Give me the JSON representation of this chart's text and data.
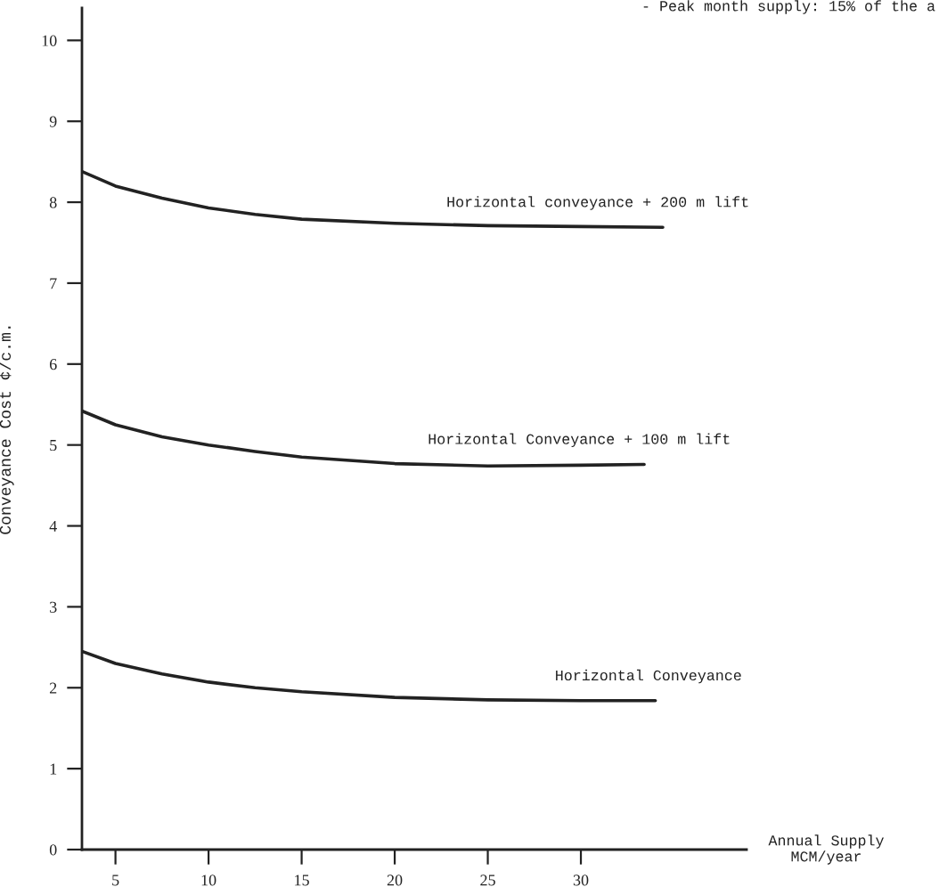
{
  "chart_data": {
    "type": "line",
    "xlabel": "Annual Supply\nMCM/year",
    "ylabel": "Conveyance Cost ¢/c.m.",
    "annotations": [
      "- Peak month supply: 15% of the a"
    ],
    "xlim": [
      3.2,
      38.9
    ],
    "ylim": [
      0,
      10.4
    ],
    "xticks": [
      5,
      10,
      15,
      20,
      25,
      30
    ],
    "yticks": [
      0,
      1,
      2,
      3,
      4,
      5,
      6,
      7,
      8,
      9,
      10
    ],
    "grid": false,
    "legend": false,
    "marker": "none",
    "line_style": "solid",
    "series": [
      {
        "name": "Horizontal conveyance + 200 m lift",
        "color": "#222222",
        "x": [
          3.2,
          5,
          7.5,
          10,
          12.5,
          15,
          20,
          25,
          30,
          34.4
        ],
        "values": [
          8.38,
          8.2,
          8.05,
          7.93,
          7.85,
          7.79,
          7.74,
          7.71,
          7.7,
          7.69
        ]
      },
      {
        "name": "Horizontal Conveyance + 100 m lift",
        "color": "#222222",
        "x": [
          3.2,
          5,
          7.5,
          10,
          12.5,
          15,
          20,
          25,
          30,
          33.4
        ],
        "values": [
          5.42,
          5.25,
          5.1,
          5.0,
          4.92,
          4.85,
          4.77,
          4.74,
          4.75,
          4.76
        ]
      },
      {
        "name": "Horizontal Conveyance",
        "color": "#222222",
        "x": [
          3.2,
          5,
          7.5,
          10,
          12.5,
          15,
          20,
          25,
          30,
          34
        ],
        "values": [
          2.45,
          2.3,
          2.17,
          2.07,
          2.0,
          1.95,
          1.88,
          1.85,
          1.84,
          1.84
        ]
      }
    ]
  }
}
